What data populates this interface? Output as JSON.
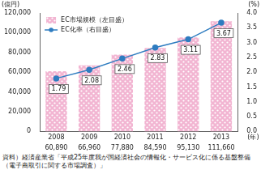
{
  "chart_data": {
    "type": "bar",
    "categories": [
      "2008",
      "2009",
      "2010",
      "2011",
      "2012",
      "2013"
    ],
    "x_label": "(年)",
    "y_label": "(億円)",
    "y2_label": "(%)",
    "series": [
      {
        "name": "EC市場規模（左目盛）",
        "type": "bar",
        "color": "#f2b5d2",
        "values": [
          60890,
          66960,
          77880,
          84590,
          95130,
          111660
        ],
        "value_labels": [
          "60,890",
          "66,960",
          "77,880",
          "84,590",
          "95,130",
          "111,660"
        ],
        "data_labels": true
      },
      {
        "name": "EC化率（右目盛）",
        "type": "line",
        "axis": "y2",
        "color": "#2e7cc0",
        "marker": "circle",
        "values": [
          1.79,
          2.08,
          2.46,
          2.83,
          3.11,
          3.67
        ],
        "data_labels": true
      }
    ],
    "ylim": [
      0,
      120000
    ],
    "yticks": [
      0,
      {
        "value": 20000,
        "label": "20,000"
      },
      {
        "value": 40000,
        "label": "40,000"
      },
      {
        "value": 60000,
        "label": "60,000"
      },
      {
        "value": 80000,
        "label": "80,000"
      },
      {
        "value": 100000,
        "label": "100,000"
      },
      {
        "value": 120000,
        "label": "120,000"
      }
    ],
    "y2lim": [
      0,
      4
    ],
    "y2ticks": [
      {
        "value": 0,
        "label": "0.0"
      },
      0.5,
      {
        "value": 1,
        "label": "1.0"
      },
      1.5,
      {
        "value": 2,
        "label": "2.0"
      },
      2.5,
      {
        "value": 3,
        "label": "3.0"
      },
      3.5,
      {
        "value": 4,
        "label": "4.0"
      }
    ],
    "grid": false,
    "legend": "upper left",
    "source": "資料）経済産業省「平成25年度我が国経済社会の情報化・サービス化に係る基盤整備（電子商取引に関する市場調査）」"
  }
}
